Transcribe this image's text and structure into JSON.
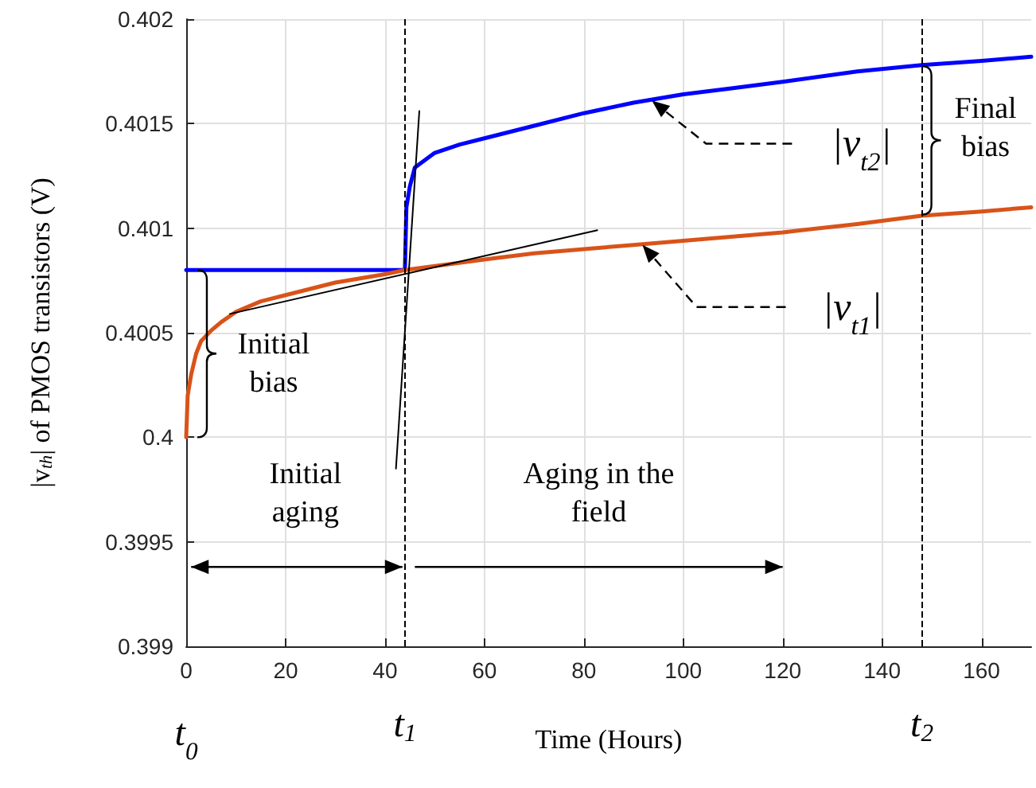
{
  "chart_data": {
    "type": "line",
    "xlabel": "Time (Hours)",
    "ylabel": "|v$_{th}$| of PMOS transistors (V)",
    "xlim": [
      0,
      170
    ],
    "xticks": [
      0,
      20,
      40,
      60,
      80,
      100,
      120,
      140,
      160
    ],
    "ylim": [
      0.399,
      0.402
    ],
    "yticks": [
      0.399,
      0.3995,
      0.4,
      0.4005,
      0.401,
      0.4015,
      0.402
    ],
    "grid": true,
    "marker": "none",
    "line_style": "solid",
    "series": [
      {
        "color": "#0000ff",
        "x": [
          0,
          44,
          44.3,
          45,
          46,
          50,
          55,
          60,
          70,
          80,
          90,
          100,
          110,
          120,
          135,
          148,
          160,
          170
        ],
        "values": [
          0.4008,
          0.4008,
          0.4011,
          0.4012,
          0.40129,
          0.40136,
          0.4014,
          0.40143,
          0.40149,
          0.40155,
          0.4016,
          0.40164,
          0.40167,
          0.4017,
          0.40175,
          0.40178,
          0.4018,
          0.40182
        ]
      },
      {
        "color": "#d95319",
        "x": [
          0,
          0.3,
          1,
          2,
          3,
          5,
          7,
          10,
          15,
          20,
          30,
          40,
          44,
          60,
          70,
          80,
          90,
          100,
          120,
          135,
          148,
          160,
          170
        ],
        "values": [
          0.4,
          0.4002,
          0.4003,
          0.4004,
          0.40046,
          0.40051,
          0.40055,
          0.4006,
          0.40065,
          0.40068,
          0.40074,
          0.40078,
          0.4008,
          0.40085,
          0.40088,
          0.4009,
          0.40092,
          0.40094,
          0.40098,
          0.40102,
          0.40106,
          0.40108,
          0.4011
        ]
      },
      {
        "color": "#000000",
        "x": [
          8.8,
          82.7
        ],
        "values": [
          0.40059,
          0.40099
        ]
      },
      {
        "color": "#000000",
        "x": [
          42.2,
          46.9
        ],
        "values": [
          0.39985,
          0.40156
        ]
      }
    ],
    "ref_lines": [
      {
        "axis": "x",
        "value": 44,
        "label": "t$_{1}$",
        "color": "#000000",
        "line_style": "dashed"
      },
      {
        "axis": "x",
        "value": 148,
        "label": "t$_{2}$",
        "color": "#000000",
        "line_style": "dashed"
      }
    ],
    "annotations": [
      {
        "text": "Initial bias",
        "x": 0,
        "y": 0.4004
      },
      {
        "text": "Final bias",
        "x": 148,
        "y": 0.40142
      },
      "Initial aging",
      "Aging in the field",
      "t$_{0}$",
      {
        "text": "|v$_{t2}$|",
        "x": 93.7,
        "y": 0.40161
      },
      {
        "text": "|v$_{t1}$|",
        "x": 91.8,
        "y": 0.40092
      }
    ]
  }
}
